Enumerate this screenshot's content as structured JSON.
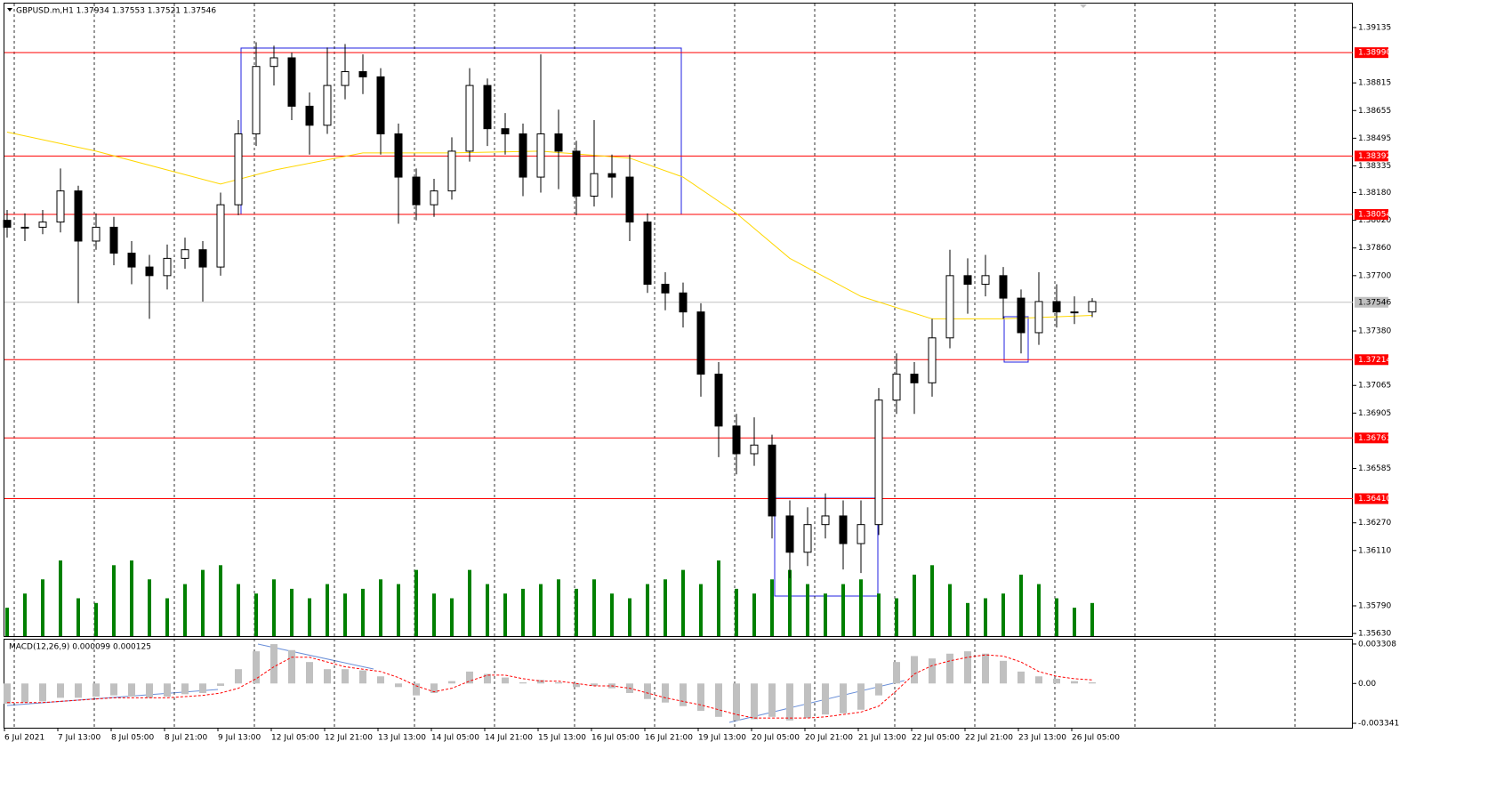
{
  "chart_data": {
    "type": "candlestick",
    "title": "GBPUSD.m,H1 1.37934 1.37553 1.37521 1.37546",
    "categories": [
      "6 Jul 2021",
      null,
      null,
      "7 Jul 13:00",
      null,
      null,
      "8 Jul 05:00",
      null,
      null,
      "8 Jul 21:00",
      null,
      null,
      "9 Jul 13:00",
      null,
      null,
      "12 Jul 05:00",
      null,
      null,
      "12 Jul 21:00",
      null,
      null,
      "13 Jul 13:00",
      null,
      null,
      "14 Jul 05:00",
      null,
      null,
      "14 Jul 21:00",
      null,
      null,
      "15 Jul 13:00",
      null,
      null,
      "16 Jul 05:00",
      null,
      null,
      "16 Jul 21:00",
      null,
      null,
      "19 Jul 13:00",
      null,
      null,
      "20 Jul 05:00",
      null,
      null,
      "20 Jul 21:00",
      null,
      null,
      "21 Jul 13:00",
      null,
      null,
      "22 Jul 05:00",
      null,
      null,
      "22 Jul 21:00",
      null,
      null,
      "23 Jul 13:00",
      null,
      null,
      "26 Jul 05:00",
      null
    ],
    "open": [
      1.3802,
      1.3798,
      1.3798,
      1.3801,
      1.3819,
      1.379,
      1.3798,
      1.3783,
      1.3775,
      1.377,
      1.378,
      1.3785,
      1.3775,
      1.3811,
      1.3852,
      1.3891,
      1.3896,
      1.3868,
      1.3857,
      1.388,
      1.3888,
      1.3885,
      1.3852,
      1.3827,
      1.3811,
      1.3819,
      1.3842,
      1.388,
      1.3855,
      1.3852,
      1.3827,
      1.3852,
      1.3842,
      1.3816,
      1.3829,
      1.3827,
      1.3801,
      1.3765,
      1.376,
      1.3749,
      1.3713,
      1.3683,
      1.3667,
      1.3672,
      1.3631,
      1.361,
      1.3626,
      1.3631,
      1.3615,
      1.3626,
      1.3698,
      1.3713,
      1.3708,
      1.3734,
      1.377,
      1.3765,
      1.377,
      1.3757,
      1.3737,
      1.3755,
      1.3749,
      1.3749
    ],
    "high": [
      1.3808,
      1.3806,
      1.3808,
      1.3832,
      1.3822,
      1.3806,
      1.3804,
      1.379,
      1.3782,
      1.3788,
      1.3792,
      1.379,
      1.3818,
      1.386,
      1.3905,
      1.3903,
      1.3899,
      1.3876,
      1.3902,
      1.3904,
      1.3898,
      1.389,
      1.3858,
      1.3832,
      1.3826,
      1.385,
      1.389,
      1.3884,
      1.3864,
      1.3858,
      1.3898,
      1.3866,
      1.3848,
      1.386,
      1.384,
      1.384,
      1.3806,
      1.3772,
      1.3766,
      1.3754,
      1.372,
      1.369,
      1.3688,
      1.3678,
      1.364,
      1.3636,
      1.3644,
      1.364,
      1.364,
      1.3705,
      1.3725,
      1.372,
      1.3745,
      1.3785,
      1.378,
      1.3782,
      1.3775,
      1.3762,
      1.3772,
      1.3765,
      1.3758,
      1.3757
    ],
    "low": [
      1.3792,
      1.379,
      1.3794,
      1.3795,
      1.3754,
      1.3785,
      1.3776,
      1.3765,
      1.3745,
      1.3762,
      1.3774,
      1.3755,
      1.377,
      1.3805,
      1.3845,
      1.388,
      1.386,
      1.384,
      1.3852,
      1.3872,
      1.3875,
      1.384,
      1.38,
      1.3802,
      1.3804,
      1.3814,
      1.3836,
      1.3845,
      1.384,
      1.3816,
      1.3818,
      1.382,
      1.3805,
      1.381,
      1.3815,
      1.379,
      1.376,
      1.375,
      1.374,
      1.37,
      1.3665,
      1.3655,
      1.366,
      1.3618,
      1.3595,
      1.3602,
      1.3618,
      1.36,
      1.3598,
      1.362,
      1.369,
      1.369,
      1.37,
      1.3728,
      1.3748,
      1.3758,
      1.3745,
      1.3725,
      1.373,
      1.374,
      1.3742,
      1.3746
    ],
    "close": [
      1.3798,
      1.3798,
      1.3801,
      1.3819,
      1.379,
      1.3798,
      1.3783,
      1.3775,
      1.377,
      1.378,
      1.3785,
      1.3775,
      1.3811,
      1.3852,
      1.3891,
      1.3896,
      1.3868,
      1.3857,
      1.388,
      1.3888,
      1.3885,
      1.3852,
      1.3827,
      1.3811,
      1.3819,
      1.3842,
      1.388,
      1.3855,
      1.3852,
      1.3827,
      1.3852,
      1.3842,
      1.3816,
      1.3829,
      1.3827,
      1.3801,
      1.3765,
      1.376,
      1.3749,
      1.3713,
      1.3683,
      1.3667,
      1.3672,
      1.3631,
      1.361,
      1.3626,
      1.3631,
      1.3615,
      1.3626,
      1.3698,
      1.3713,
      1.3708,
      1.3734,
      1.377,
      1.3765,
      1.377,
      1.3757,
      1.3737,
      1.3755,
      1.3749,
      1.3749,
      1.3755
    ],
    "candle_color": "#000000",
    "volume": {
      "color": "#008000",
      "values": [
        30,
        45,
        60,
        80,
        40,
        35,
        75,
        80,
        60,
        40,
        55,
        70,
        75,
        55,
        45,
        60,
        50,
        40,
        55,
        45,
        50,
        60,
        55,
        70,
        45,
        40,
        70,
        55,
        45,
        50,
        55,
        60,
        50,
        60,
        45,
        40,
        55,
        60,
        70,
        55,
        80,
        50,
        45,
        60,
        70,
        55,
        45,
        55,
        60,
        45,
        40,
        65,
        75,
        55,
        35,
        40,
        45,
        65,
        55,
        40,
        30,
        35
      ]
    },
    "moving_average": {
      "color": "#ffd700",
      "index": [
        0,
        5,
        12,
        15,
        20,
        25,
        30,
        35,
        38,
        41,
        44,
        48,
        52,
        56,
        61
      ],
      "values": [
        1.3853,
        1.3842,
        1.3823,
        1.3831,
        1.3841,
        1.3841,
        1.3842,
        1.3838,
        1.3827,
        1.3806,
        1.378,
        1.3758,
        1.3745,
        1.3745,
        1.3747
      ]
    },
    "ylim": [
      1.35615,
      1.39279
    ],
    "yticks": [
      1.39135,
      1.38815,
      1.38655,
      1.38495,
      1.38335,
      {
        "value": 1.3818,
        "label": "1.38180"
      },
      {
        "value": 1.3802,
        "label": "1.38020"
      },
      {
        "value": 1.3786,
        "label": "1.37860"
      },
      {
        "value": 1.377,
        "label": "1.37700"
      },
      {
        "value": 1.3738,
        "label": "1.37380"
      },
      1.37065,
      1.36905,
      1.36585,
      {
        "value": 1.3627,
        "label": "1.36270"
      },
      {
        "value": 1.3611,
        "label": "1.36110"
      },
      {
        "value": 1.3579,
        "label": "1.35790"
      },
      {
        "value": 1.3563,
        "label": "1.35630"
      }
    ],
    "levels": {
      "color": "#ff0000",
      "values": [
        {
          "value": 1.3899,
          "label": "1.38990"
        },
        1.38392,
        1.38054,
        1.37214,
        1.36761,
        {
          "value": 1.3641,
          "label": "1.36410"
        }
      ]
    },
    "current_price": {
      "color": "#c0c0c0",
      "value": 1.37546
    },
    "macd": {
      "label": "MACD(12,26,9) 0.000099 0.000125",
      "histogram_color": "#c0c0c0",
      "signal_color": "#ff0000",
      "histogram": [
        -0.0017,
        -0.0016,
        -0.0015,
        -0.0012,
        -0.0012,
        -0.0011,
        -0.001,
        -0.0011,
        -0.0012,
        -0.0011,
        -0.0009,
        -0.0008,
        -0.0002,
        0.0012,
        0.0027,
        0.0033,
        0.0028,
        0.0018,
        0.0012,
        0.0012,
        0.0011,
        0.0006,
        -0.0003,
        -0.001,
        -0.0008,
        0.0002,
        0.001,
        0.0008,
        0.0005,
        0.0001,
        0.0003,
        0.0001,
        -0.0003,
        -0.0002,
        -0.0004,
        -0.0008,
        -0.0013,
        -0.0016,
        -0.0019,
        -0.0023,
        -0.0028,
        -0.0031,
        -0.003,
        -0.0028,
        -0.0031,
        -0.0029,
        -0.0026,
        -0.0025,
        -0.0022,
        -0.001,
        0.0018,
        0.0023,
        0.0021,
        0.0025,
        0.0027,
        0.0025,
        0.0019,
        0.001,
        0.0006,
        0.0004,
        0.0002,
        0.0001
      ],
      "signal": [
        -0.0016,
        -0.0016,
        -0.0016,
        -0.0015,
        -0.0014,
        -0.0013,
        -0.0012,
        -0.0012,
        -0.0012,
        -0.0012,
        -0.0011,
        -0.001,
        -0.0008,
        -0.0004,
        0.0004,
        0.0014,
        0.0022,
        0.0022,
        0.0018,
        0.0014,
        0.0012,
        0.001,
        0.0005,
        -0.0002,
        -0.0007,
        -0.0004,
        0.0002,
        0.0007,
        0.0007,
        0.0004,
        0.0002,
        0.0002,
        0,
        -0.0002,
        -0.0002,
        -0.0004,
        -0.0008,
        -0.0012,
        -0.0015,
        -0.0018,
        -0.0022,
        -0.0026,
        -0.0029,
        -0.0029,
        -0.0029,
        -0.0029,
        -0.0028,
        -0.0026,
        -0.0024,
        -0.0019,
        -0.0006,
        0.0008,
        0.0015,
        0.0019,
        0.0022,
        0.0024,
        0.0023,
        0.0018,
        0.001,
        0.0006,
        0.0004,
        0.0003
      ],
      "ylim": [
        -0.003635,
        0.003602
      ],
      "yticks": [
        0.003308,
        {
          "value": 0,
          "label": "0.00"
        },
        -0.003341
      ]
    }
  }
}
